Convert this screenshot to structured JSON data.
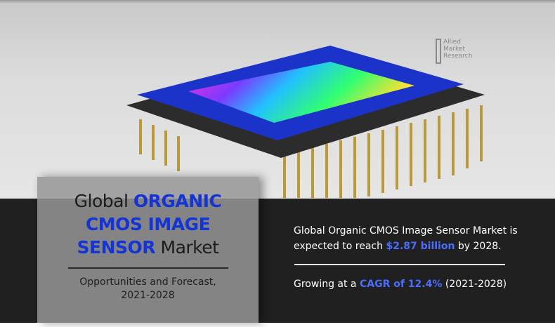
{
  "logo": {
    "line1": "Allied",
    "line2": "Market",
    "line3": "Research"
  },
  "panel": {
    "title_prefix": "Global ",
    "title_highlight_1": "ORGANIC",
    "title_highlight_2": "CMOS IMAGE",
    "title_highlight_3": "SENSOR",
    "title_suffix": " Market",
    "subtitle_line1": "Opportunities and Forecast,",
    "subtitle_line2": "2021-2028"
  },
  "stats": {
    "market_text_1": "Global Organic CMOS Image Sensor Market is expected to reach ",
    "market_value": "$2.87 billion",
    "market_text_2": " by 2028.",
    "growth_text_1": "Growing at a ",
    "growth_value": "CAGR of 12.4%",
    "growth_text_2": " (2021-2028)"
  },
  "colors": {
    "accent": "#1434d6",
    "highlight": "#4a6dff",
    "band": "#202020"
  }
}
